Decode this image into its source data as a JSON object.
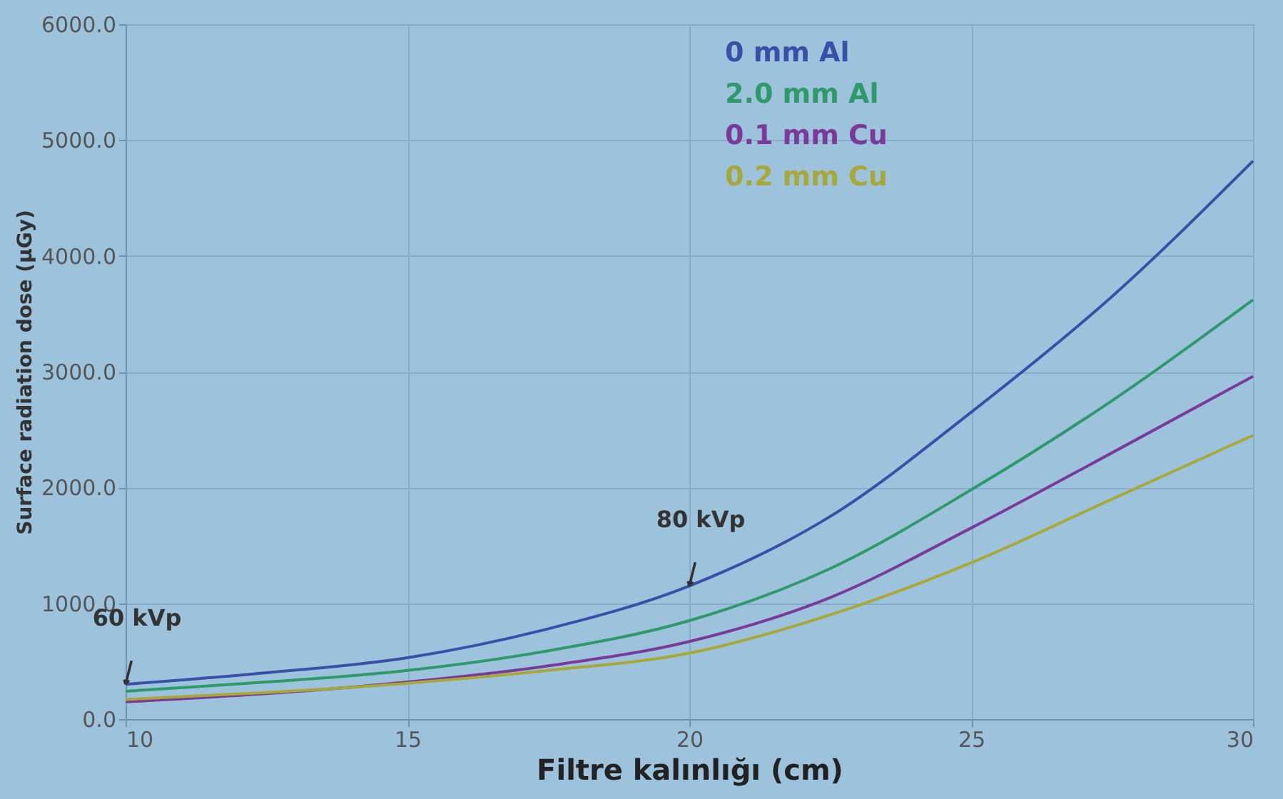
{
  "chart_data": {
    "type": "line",
    "xlabel": "Filtre kalınlığı (cm)",
    "ylabel": "Surface radiation dose (μGy)",
    "x": [
      10,
      12.5,
      15,
      17.5,
      20,
      22.5,
      25,
      27.5,
      30
    ],
    "series": [
      {
        "name": "0 mm Al",
        "color": "#3b4fa8",
        "values": [
          300,
          400,
          530,
          780,
          1150,
          1750,
          2650,
          3650,
          4820
        ]
      },
      {
        "name": "2.0 mm Al",
        "color": "#2e9a6a",
        "values": [
          240,
          320,
          420,
          590,
          850,
          1300,
          1980,
          2750,
          3620
        ]
      },
      {
        "name": "0.1 mm Cu",
        "color": "#7a3a9a",
        "values": [
          150,
          220,
          320,
          460,
          670,
          1050,
          1650,
          2300,
          2960
        ]
      },
      {
        "name": "0.2 mm Cu",
        "color": "#a8a83a",
        "values": [
          170,
          230,
          310,
          420,
          570,
          900,
          1350,
          1900,
          2450
        ]
      }
    ],
    "annotations": [
      {
        "text": "60 kVp",
        "x": 10,
        "y": 300
      },
      {
        "text": "80 kVp",
        "x": 20,
        "y": 1150
      }
    ],
    "xlim": [
      10,
      30
    ],
    "xticks": [
      10,
      15,
      20,
      25,
      30
    ],
    "ylim": [
      0,
      6000
    ],
    "yticks": [
      {
        "value": 0,
        "label": "0.0"
      },
      {
        "value": 1000,
        "label": "1000.0"
      },
      {
        "value": 2000,
        "label": "2000.0"
      },
      {
        "value": 3000,
        "label": "3000.0"
      },
      {
        "value": 4000,
        "label": "4000.0"
      },
      {
        "value": 5000,
        "label": "5000.0"
      },
      {
        "value": 6000,
        "label": "6000.0"
      }
    ],
    "grid": true,
    "legend": "top right",
    "marker": "none",
    "line_style": "solid"
  }
}
